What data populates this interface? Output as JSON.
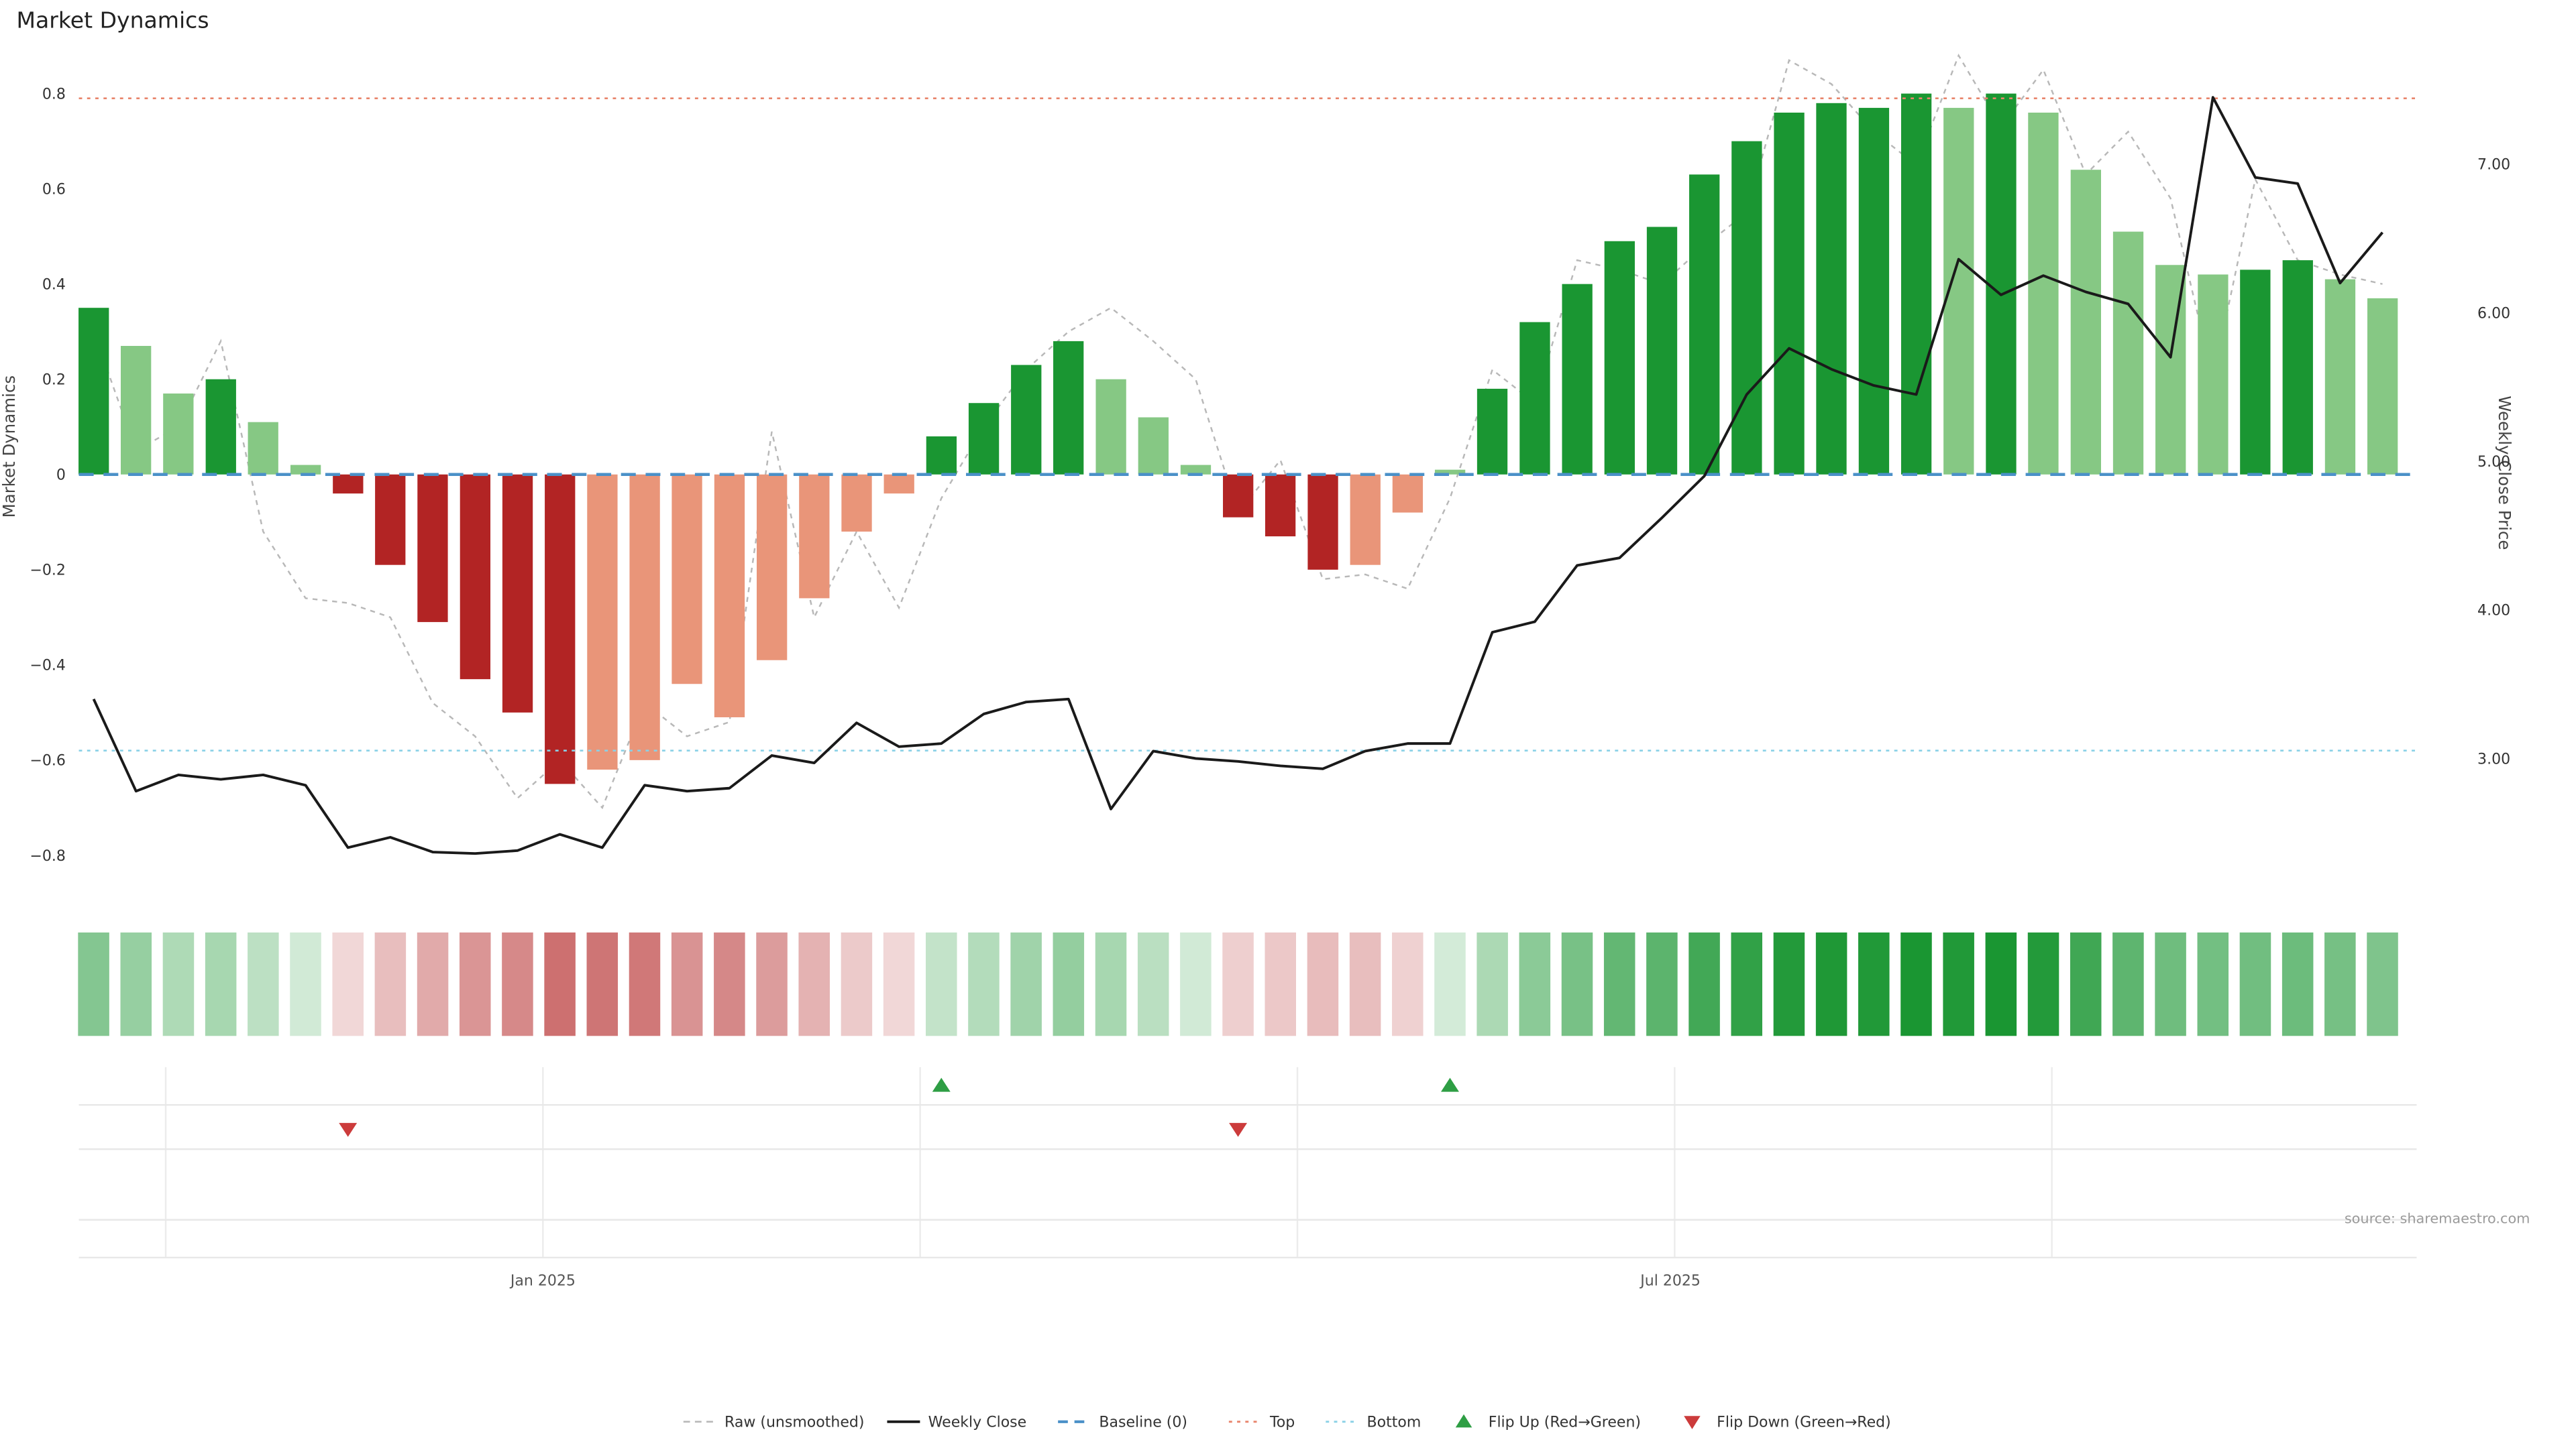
{
  "title": "Market Dynamics",
  "source": "source: sharemaestro.com",
  "axes": {
    "left_label": "Market Dynamics",
    "right_label": "Weekly Close Price",
    "left_ticks": [
      {
        "label": "0.8",
        "v": 0.8
      },
      {
        "label": "0.6",
        "v": 0.6
      },
      {
        "label": "0.4",
        "v": 0.4
      },
      {
        "label": "0.2",
        "v": 0.2
      },
      {
        "label": "0",
        "v": 0
      },
      {
        "label": "−0.2",
        "v": -0.2
      },
      {
        "label": "−0.4",
        "v": -0.4
      },
      {
        "label": "−0.6",
        "v": -0.6
      },
      {
        "label": "−0.8",
        "v": -0.8
      }
    ],
    "right_ticks": [
      {
        "label": "7.00",
        "v": 7
      },
      {
        "label": "6.00",
        "v": 6
      },
      {
        "label": "5.00",
        "v": 5
      },
      {
        "label": "4.00",
        "v": 4
      },
      {
        "label": "3.00",
        "v": 3
      }
    ],
    "x_ticks": [
      {
        "label": "Jan 2025",
        "index": 10.6
      },
      {
        "label": "Jul 2025",
        "index": 37.2
      }
    ]
  },
  "chart_data": {
    "type": "bar",
    "description": "Weekly market dynamics oscillator bars with raw dotted overlay, weekly close price line on right axis, heatmap strip and regime flip markers",
    "bars": {
      "name": "Market Dynamics (smoothed)",
      "axis": "left",
      "values": [
        0.35,
        0.27,
        0.17,
        0.2,
        0.11,
        0.02,
        -0.04,
        -0.19,
        -0.31,
        -0.43,
        -0.5,
        -0.65,
        -0.62,
        -0.6,
        -0.44,
        -0.51,
        -0.39,
        -0.26,
        -0.12,
        -0.04,
        0.08,
        0.15,
        0.23,
        0.28,
        0.2,
        0.12,
        0.02,
        -0.09,
        -0.13,
        -0.2,
        -0.19,
        -0.08,
        0.01,
        0.18,
        0.32,
        0.4,
        0.49,
        0.52,
        0.63,
        0.7,
        0.76,
        0.78,
        0.77,
        0.8,
        0.77,
        0.8,
        0.76,
        0.64,
        0.51,
        0.44,
        0.42,
        0.43,
        0.45,
        0.41,
        0.37
      ],
      "tones": [
        "dg",
        "lg",
        "lg",
        "dg",
        "lg",
        "lg",
        "dr",
        "dr",
        "dr",
        "dr",
        "dr",
        "dr",
        "sr",
        "sr",
        "sr",
        "sr",
        "sr",
        "sr",
        "sr",
        "sr",
        "dg",
        "dg",
        "dg",
        "dg",
        "lg",
        "lg",
        "lg",
        "dr",
        "dr",
        "dr",
        "sr",
        "sr",
        "lg",
        "dg",
        "dg",
        "dg",
        "dg",
        "dg",
        "dg",
        "dg",
        "dg",
        "dg",
        "dg",
        "dg",
        "lg",
        "dg",
        "lg",
        "lg",
        "lg",
        "lg",
        "lg",
        "dg",
        "dg",
        "lg",
        "lg"
      ]
    },
    "raw": {
      "name": "Raw (unsmoothed)",
      "axis": "left",
      "values": [
        0.3,
        0.05,
        0.1,
        0.28,
        -0.12,
        -0.26,
        -0.27,
        -0.3,
        -0.48,
        -0.55,
        -0.68,
        -0.6,
        -0.7,
        -0.48,
        -0.55,
        -0.52,
        0.09,
        -0.3,
        -0.12,
        -0.28,
        -0.05,
        0.1,
        0.22,
        0.3,
        0.35,
        0.28,
        0.2,
        -0.08,
        0.03,
        -0.22,
        -0.21,
        -0.24,
        -0.05,
        0.22,
        0.15,
        0.45,
        0.43,
        0.4,
        0.48,
        0.55,
        0.87,
        0.82,
        0.72,
        0.65,
        0.88,
        0.73,
        0.85,
        0.63,
        0.72,
        0.58,
        0.2,
        0.62,
        0.45,
        0.42,
        0.4
      ]
    },
    "weekly_close": {
      "name": "Weekly Close",
      "axis": "right",
      "values": [
        3.4,
        2.78,
        2.89,
        2.86,
        2.89,
        2.82,
        2.4,
        2.47,
        2.37,
        2.36,
        2.38,
        2.49,
        2.4,
        2.82,
        2.78,
        2.8,
        3.02,
        2.97,
        3.24,
        3.08,
        3.1,
        3.3,
        3.38,
        3.4,
        2.66,
        3.05,
        3.0,
        2.98,
        2.95,
        2.93,
        3.05,
        3.1,
        3.1,
        3.85,
        3.92,
        4.3,
        4.35,
        4.62,
        4.9,
        5.45,
        5.76,
        5.62,
        5.51,
        5.45,
        6.36,
        6.12,
        6.25,
        6.14,
        6.06,
        5.7,
        7.45,
        6.91,
        6.87,
        6.2,
        6.54
      ]
    },
    "reference_lines": {
      "baseline": 0,
      "top": 0.79,
      "bottom": -0.58
    },
    "flip_up_indices": [
      20,
      32
    ],
    "flip_down_indices": [
      6,
      27
    ],
    "left_axis_range": [
      -0.88,
      0.88
    ],
    "right_axis_range": [
      2.3,
      7.6
    ],
    "x_tick_labels": [
      "Jan 2025",
      "Jul 2025"
    ]
  },
  "colors": {
    "green_dark": "#1a9632",
    "green_light": "#86c884",
    "red_dark": "#b22424",
    "salmon": "#e99579",
    "baseline": "#4a90c8",
    "top": "#e8846b",
    "bottom": "#8ad1e6",
    "raw": "#b8b8b8",
    "weekly": "#1a1a1a",
    "flip_up": "#2e9e44",
    "flip_down": "#cc3b3b"
  },
  "legend": {
    "items": [
      {
        "type": "dash-gray",
        "label": "Raw (unsmoothed)"
      },
      {
        "type": "line-black",
        "label": "Weekly Close"
      },
      {
        "type": "dash-blue",
        "label": "Baseline (0)"
      },
      {
        "type": "dot-orange",
        "label": "Top"
      },
      {
        "type": "dot-lightblue",
        "label": "Bottom"
      },
      {
        "type": "tri-up-green",
        "label": "Flip Up (Red→Green)"
      },
      {
        "type": "tri-down-red",
        "label": "Flip Down (Green→Red)"
      }
    ]
  }
}
